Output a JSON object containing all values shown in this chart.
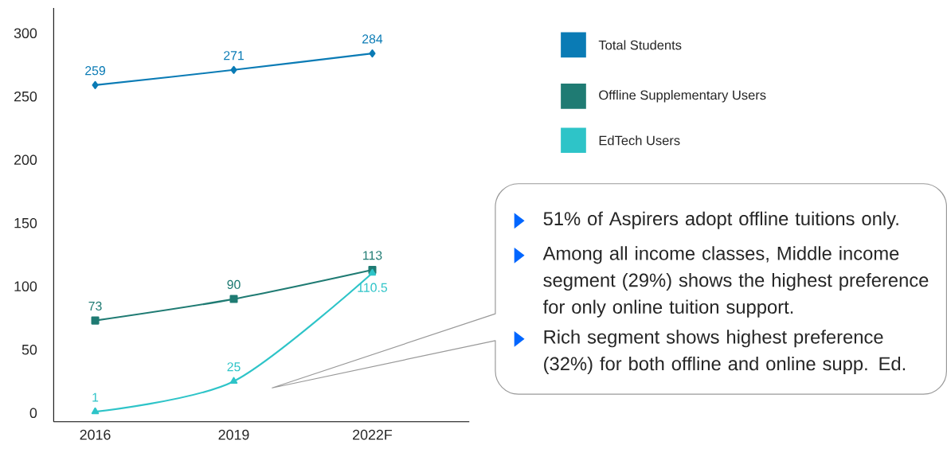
{
  "chart_data": {
    "type": "line",
    "categories": [
      "2016",
      "2019",
      "2022F"
    ],
    "series": [
      {
        "name": "Total Students",
        "color": "#0a7bb5",
        "marker": "diamond",
        "values": [
          259,
          271,
          284
        ]
      },
      {
        "name": "Offline Supplementary Users",
        "color": "#1f7b73",
        "marker": "square",
        "values": [
          73,
          90,
          113
        ]
      },
      {
        "name": "EdTech Users",
        "color": "#2ec4c8",
        "marker": "triangle",
        "values": [
          1,
          25,
          110.5
        ]
      }
    ],
    "ylim": [
      -7,
      320
    ],
    "yticks": [
      0,
      50,
      100,
      150,
      200,
      250,
      300
    ],
    "data_labels": true,
    "legend": "top right",
    "grid": false,
    "annotations": [
      {
        "text": "51% of Aspirers adopt offline tuitions only."
      },
      {
        "text": "Among all income classes, Middle income segment (29%) shows the highest preference for only online tuition support."
      },
      {
        "text": "Rich segment shows highest preference (32%) for both offline and online supp. Ed."
      }
    ]
  }
}
